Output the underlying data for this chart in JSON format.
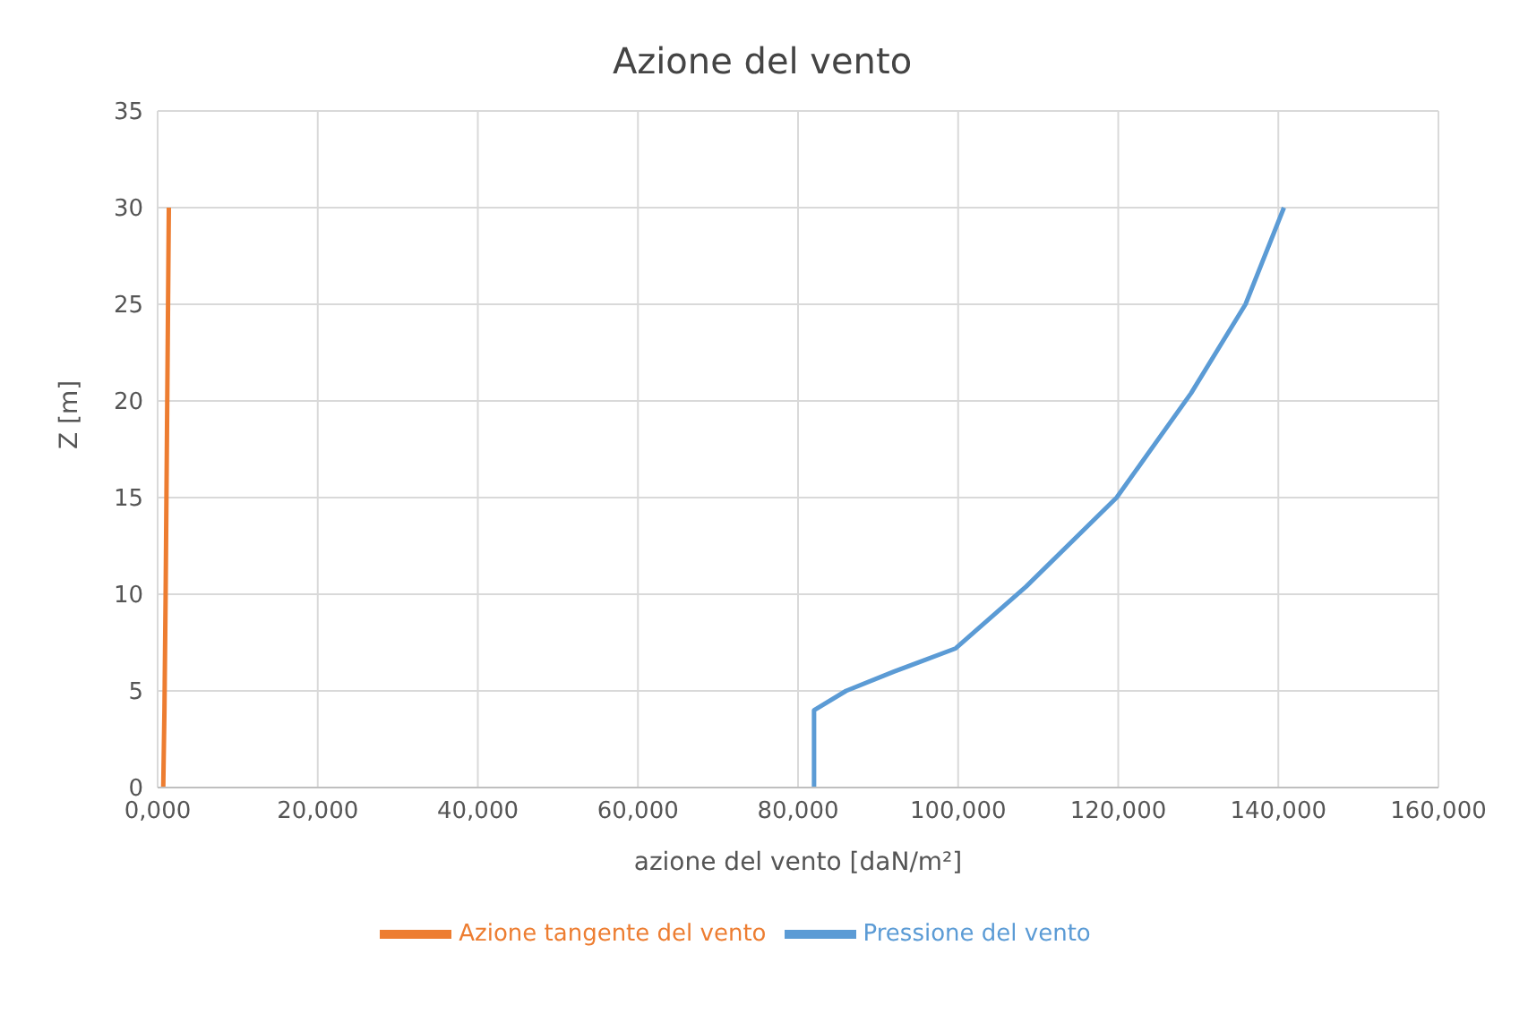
{
  "chart_data": {
    "type": "line",
    "title": "Azione del vento",
    "xlabel": "azione del vento [daN/m²]",
    "ylabel": "Z [m]",
    "series": [
      {
        "name": "Pressione del vento",
        "color": "#5b9bd5",
        "x": [
          82000,
          82000,
          86000,
          92000,
          99700,
          108500,
          119800,
          129100,
          135900,
          140700
        ],
        "values": [
          0,
          4,
          5,
          6,
          7.2,
          10.4,
          15,
          20.4,
          25,
          30
        ]
      },
      {
        "name": "Azione tangente del vento",
        "color": "#ed7d31",
        "x": [
          700,
          850,
          1000,
          1200,
          1400
        ],
        "values": [
          0,
          4,
          10,
          20,
          30
        ]
      }
    ],
    "xlim": [
      0,
      160000
    ],
    "xticks": [
      {
        "value": 0,
        "label": "0,000"
      },
      {
        "value": 20000,
        "label": "20,000"
      },
      {
        "value": 40000,
        "label": "40,000"
      },
      {
        "value": 60000,
        "label": "60,000"
      },
      {
        "value": 80000,
        "label": "80,000"
      },
      {
        "value": 100000,
        "label": "100,000"
      },
      {
        "value": 120000,
        "label": "120,000"
      },
      {
        "value": 140000,
        "label": "140,000"
      },
      {
        "value": 160000,
        "label": "160,000"
      }
    ],
    "ylim": [
      0,
      35
    ],
    "yticks": [
      0,
      5,
      10,
      15,
      20,
      25,
      30,
      35
    ],
    "grid": true,
    "legend": "bottom",
    "marker": "none",
    "line_style": "solid"
  }
}
